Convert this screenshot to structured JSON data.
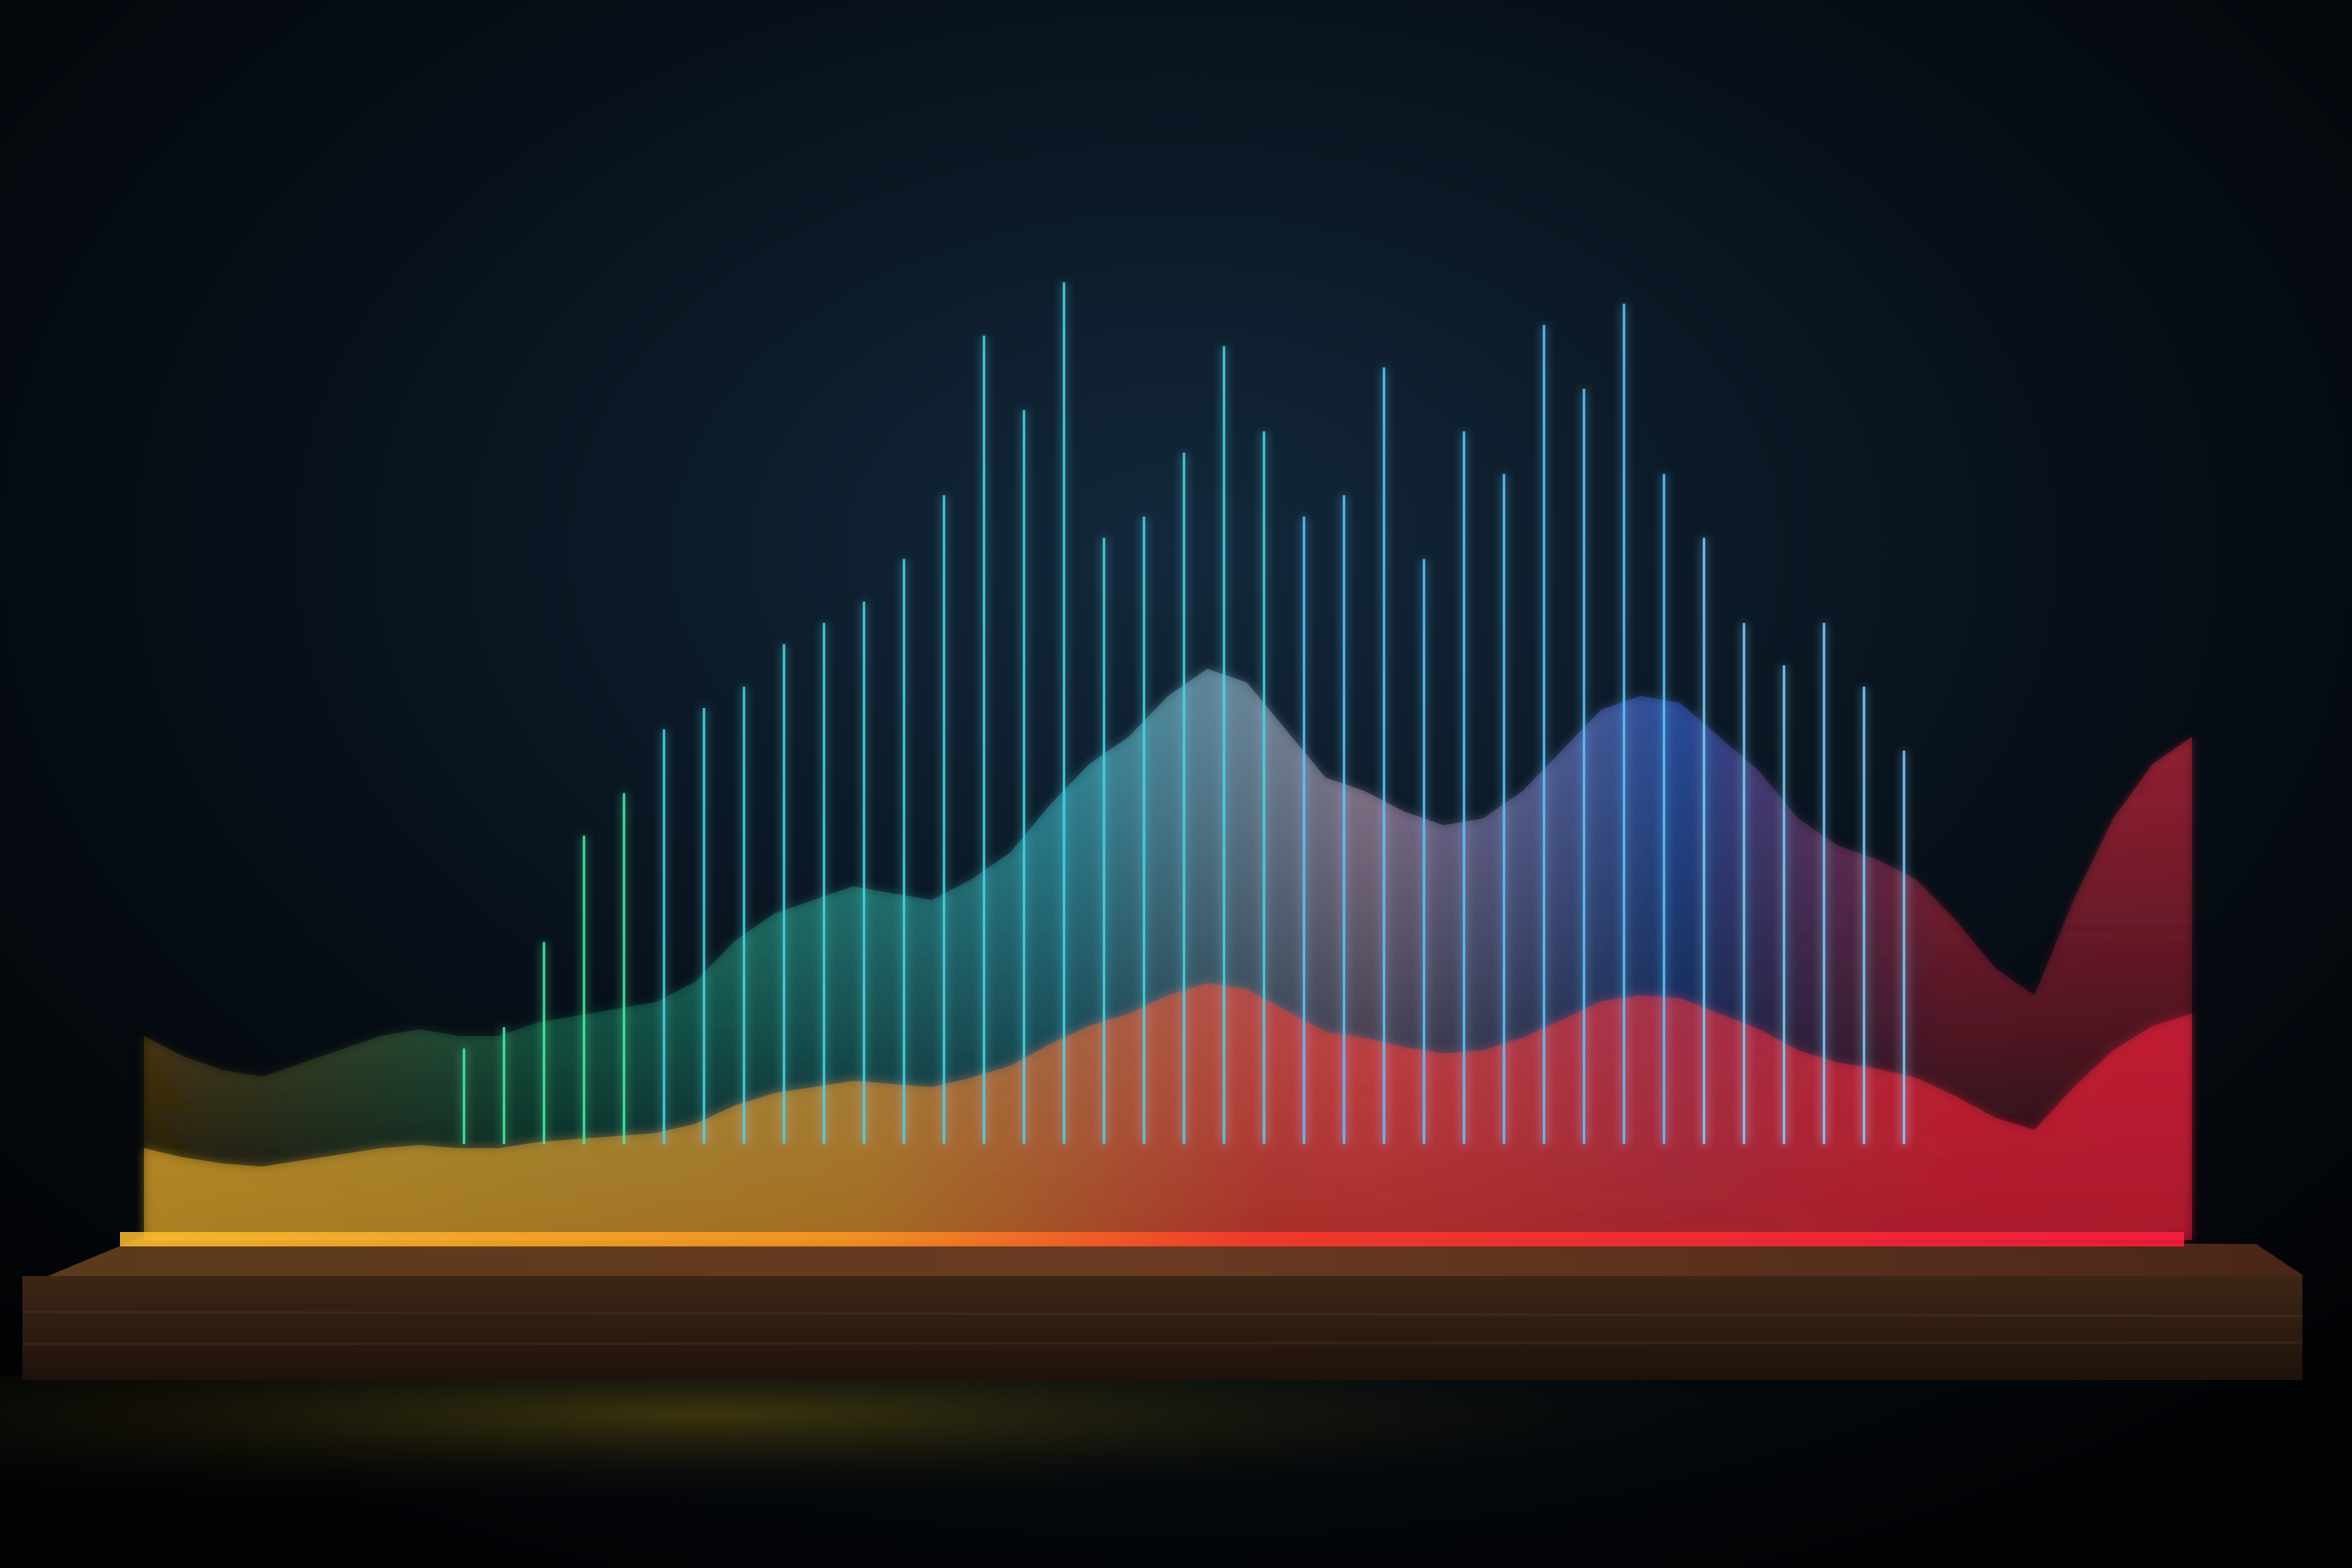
{
  "scene": {
    "subject": "glowing-bar-sculpture",
    "background_top": "#13283c",
    "background_bottom": "#020305",
    "base_color": "#3a2415",
    "palette": [
      "#f0a020",
      "#2ee89a",
      "#4ad8e8",
      "#e7b7d3",
      "#3a6ee8",
      "#ff2f48"
    ]
  },
  "visual_profile": {
    "type": "area",
    "levels": [
      30,
      27,
      25,
      24,
      26,
      28,
      30,
      31,
      30,
      30,
      32,
      33,
      34,
      35,
      38,
      44,
      48,
      50,
      52,
      51,
      50,
      53,
      57,
      64,
      70,
      74,
      80,
      84,
      82,
      75,
      68,
      66,
      63,
      61,
      62,
      66,
      72,
      78,
      80,
      79,
      74,
      69,
      62,
      58,
      56,
      53,
      47,
      40,
      36,
      50,
      62,
      70,
      74
    ],
    "spikes": [
      18,
      20,
      28,
      38,
      42,
      48,
      50,
      52,
      56,
      58,
      60,
      64,
      70,
      85,
      78,
      90,
      66,
      68,
      74,
      84,
      76,
      68,
      70,
      82,
      64,
      76,
      72,
      86,
      80,
      88,
      72,
      66,
      58,
      54,
      58,
      52,
      46
    ]
  }
}
